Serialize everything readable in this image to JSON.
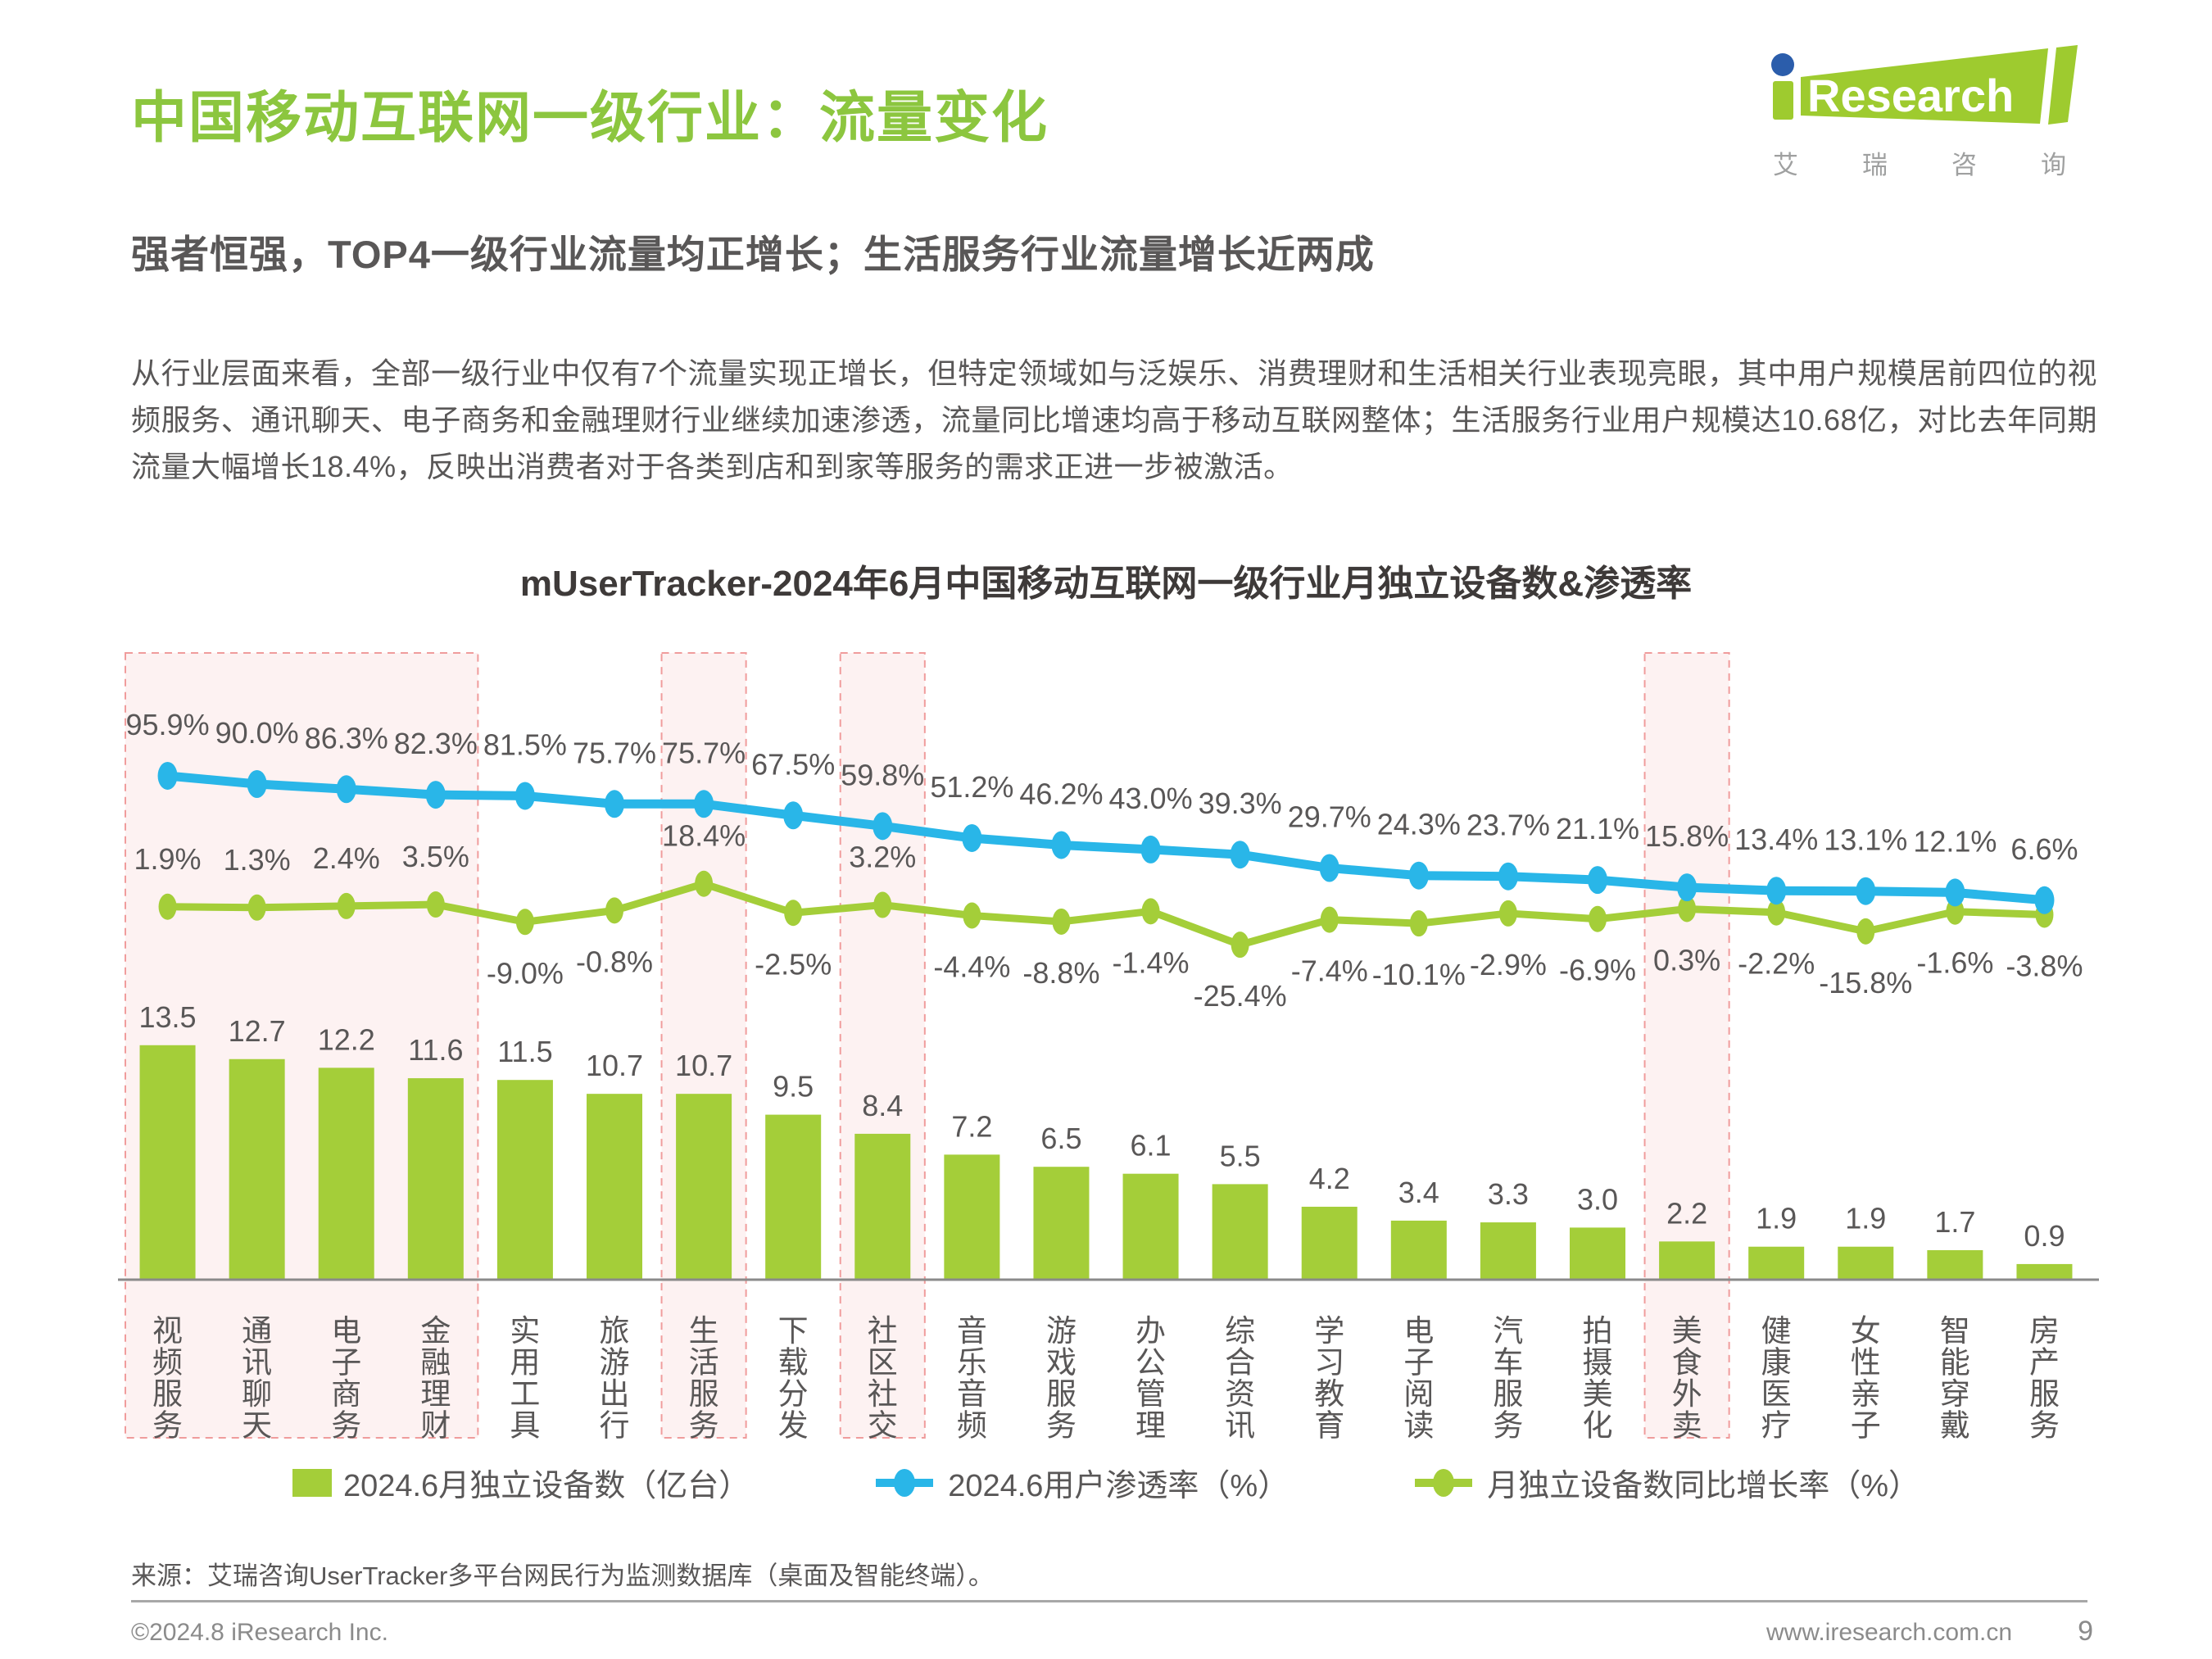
{
  "page": {
    "title": "中国移动互联网一级行业：流量变化",
    "subtitle": "强者恒强，TOP4一级行业流量均正增长；生活服务行业流量增长近两成",
    "paragraph": "从行业层面来看，全部一级行业中仅有7个流量实现正增长，但特定领域如与泛娱乐、消费理财和生活相关行业表现亮眼，其中用户规模居前四位的视频服务、通讯聊天、电子商务和金融理财行业继续加速渗透，流量同比增速均高于移动互联网整体；生活服务行业用户规模达10.68亿，对比去年同期流量大幅增长18.4%，反映出消费者对于各类到店和到家等服务的需求正进一步被激活。",
    "source": "来源：艾瑞咨询UserTracker多平台网民行为监测数据库（桌面及智能终端）。",
    "footer_left": "©2024.8 iResearch Inc.",
    "footer_right": "www.iresearch.com.cn",
    "page_number": "9",
    "logo": {
      "brand_i": "i",
      "brand_rest": "Research",
      "brand_cn": "艾瑞咨询"
    }
  },
  "chart_data": {
    "type": "bar",
    "title": "mUserTracker-2024年6月中国移动互联网一级行业月独立设备数&渗透率",
    "categories": [
      "视频服务",
      "通讯聊天",
      "电子商务",
      "金融理财",
      "实用工具",
      "旅游出行",
      "生活服务",
      "下载分发",
      "社区社交",
      "音乐音频",
      "游戏服务",
      "办公管理",
      "综合资讯",
      "学习教育",
      "电子阅读",
      "汽车服务",
      "拍摄美化",
      "美食外卖",
      "健康医疗",
      "女性亲子",
      "智能穿戴",
      "房产服务"
    ],
    "series": [
      {
        "name": "2024.6月独立设备数（亿台）",
        "type": "bar",
        "color": "#a4ce39",
        "values": [
          13.5,
          12.7,
          12.2,
          11.6,
          11.5,
          10.7,
          10.7,
          9.5,
          8.4,
          7.2,
          6.5,
          6.1,
          5.5,
          4.2,
          3.4,
          3.3,
          3.0,
          2.2,
          1.9,
          1.9,
          1.7,
          0.9
        ]
      },
      {
        "name": "2024.6用户渗透率（%）",
        "type": "line",
        "color": "#29b6e8",
        "values": [
          95.9,
          90.0,
          86.3,
          82.3,
          81.5,
          75.7,
          75.7,
          67.5,
          59.8,
          51.2,
          46.2,
          43.0,
          39.3,
          29.7,
          24.3,
          23.7,
          21.1,
          15.8,
          13.4,
          13.1,
          12.1,
          6.6
        ]
      },
      {
        "name": "月独立设备数同比增长率（%）",
        "type": "line",
        "color": "#a4ce39",
        "values": [
          1.9,
          1.3,
          2.4,
          3.5,
          -9.0,
          -0.8,
          18.4,
          -2.5,
          3.2,
          -4.4,
          -8.8,
          -1.4,
          -25.4,
          -7.4,
          -10.1,
          -2.9,
          -6.9,
          0.3,
          -2.2,
          -15.8,
          -1.6,
          -3.8
        ]
      }
    ],
    "highlight_bands": [
      [
        0,
        3
      ],
      [
        6,
        6
      ],
      [
        8,
        8
      ],
      [
        17,
        17
      ]
    ],
    "colors": {
      "accent_green": "#8cc63f",
      "band_fill": "#fdf2f2",
      "band_border": "#f09c9c"
    },
    "legend_position": "bottom",
    "grid": false
  }
}
